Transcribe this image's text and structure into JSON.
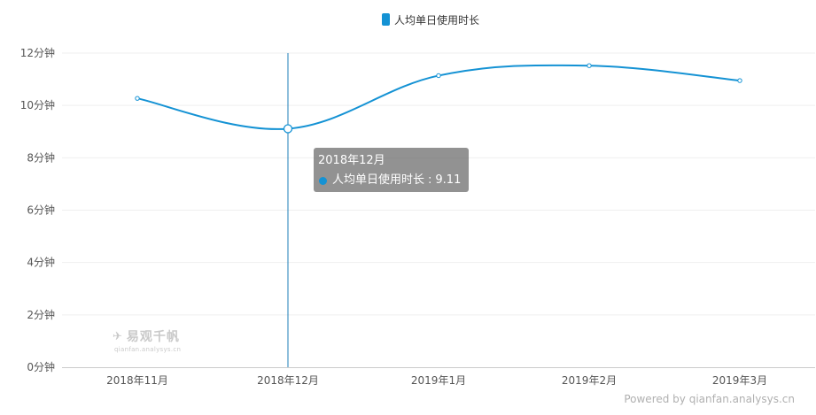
{
  "chart_data": {
    "type": "line",
    "categories": [
      "2018年11月",
      "2018年12月",
      "2019年1月",
      "2019年2月",
      "2019年3月"
    ],
    "series": [
      {
        "name": "人均单日使用时长",
        "values": [
          10.27,
          9.11,
          11.14,
          11.52,
          10.95
        ],
        "color": "#1492d4"
      }
    ],
    "y_ticks": [
      "0分钟",
      "2分钟",
      "4分钟",
      "6分钟",
      "8分钟",
      "10分钟",
      "12分钟"
    ],
    "ylim": [
      0,
      12
    ],
    "ystep": 2,
    "grid": true,
    "legend_position": "top-center",
    "highlight_index": 1
  },
  "tooltip": {
    "title": "2018年12月",
    "series_name": "人均单日使用时长",
    "separator": ":",
    "value": "9.11"
  },
  "watermark": {
    "icon": "bird-logo-icon",
    "brand": "易观千帆",
    "domain": "qianfan.analysys.cn"
  },
  "credit": "Powered by qianfan.analysys.cn"
}
